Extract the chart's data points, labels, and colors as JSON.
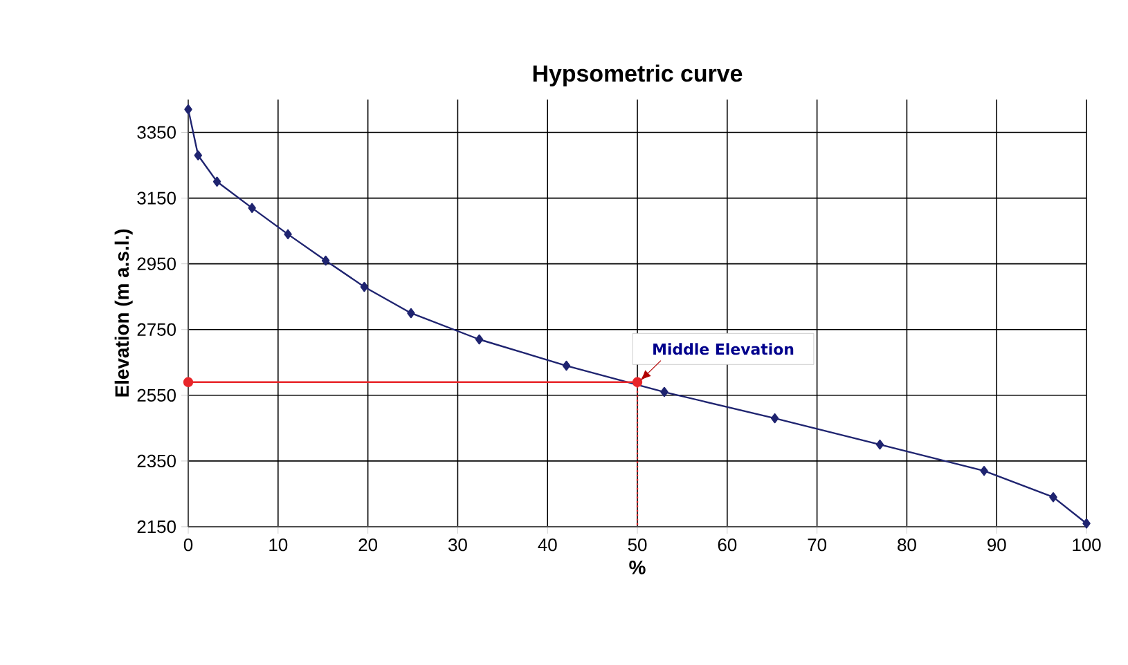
{
  "chart_data": {
    "type": "line",
    "title": "Hypsometric curve",
    "xlabel": "%",
    "ylabel": "Elevation (m a.s.l.)",
    "xlim": [
      0,
      100
    ],
    "xticks": [
      0,
      10,
      20,
      30,
      40,
      50,
      60,
      70,
      80,
      90,
      100
    ],
    "ylim": [
      2150,
      3450
    ],
    "yticks": [
      2150,
      2350,
      2550,
      2750,
      2950,
      3150,
      3350
    ],
    "grid": true,
    "series": [
      {
        "color": "#1f2470",
        "marker": "diamond",
        "line_style": "solid",
        "x": [
          0,
          1.1,
          3.2,
          7.1,
          11.1,
          15.3,
          19.6,
          24.8,
          32.4,
          42.1,
          53.0,
          65.3,
          77.0,
          88.6,
          96.3,
          100
        ],
        "values": [
          3420,
          3280,
          3200,
          3120,
          3040,
          2960,
          2880,
          2800,
          2720,
          2640,
          2560,
          2480,
          2400,
          2320,
          2240,
          2160
        ]
      },
      {
        "color": "#e8262a",
        "marker": "circle",
        "line_style": "solid",
        "x": [
          0,
          50
        ],
        "values": [
          2590,
          2590
        ]
      },
      {
        "color": "#e8262a",
        "marker": "none",
        "line_style": "dotted",
        "x": [
          50,
          50
        ],
        "values": [
          2590,
          2150
        ]
      }
    ],
    "annotations": [
      {
        "text": "Middle Elevation",
        "x": 50,
        "y": 2590
      }
    ]
  }
}
